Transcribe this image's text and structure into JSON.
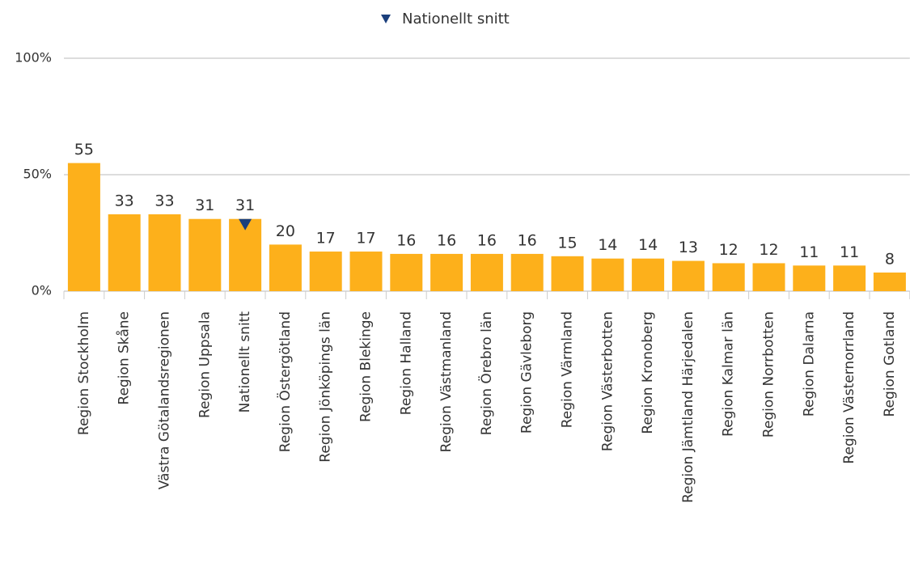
{
  "chart_data": {
    "type": "bar",
    "categories": [
      "Region Stockholm",
      "Region Skåne",
      "Västra Götalandsregionen",
      "Region Uppsala",
      "Nationellt snitt",
      "Region Östergötland",
      "Region Jönköpings län",
      "Region Blekinge",
      "Region Halland",
      "Region Västmanland",
      "Region Örebro län",
      "Region Gävleborg",
      "Region Värmland",
      "Region Västerbotten",
      "Region Kronoberg",
      "Region Jämtland Härjedalen",
      "Region Kalmar län",
      "Region Norrbotten",
      "Region Dalarna",
      "Region Västernorrland",
      "Region Gotland"
    ],
    "series": [
      {
        "color": "#fdb01b",
        "values": [
          55,
          33,
          33,
          31,
          31,
          20,
          17,
          17,
          16,
          16,
          16,
          16,
          15,
          14,
          14,
          13,
          12,
          12,
          11,
          11,
          8
        ]
      },
      {
        "name": "Nationellt snitt",
        "color": "#1b3f7c",
        "marker": "triangle-down",
        "values": [
          null,
          null,
          null,
          null,
          31,
          null,
          null,
          null,
          null,
          null,
          null,
          null,
          null,
          null,
          null,
          null,
          null,
          null,
          null,
          null,
          null
        ]
      }
    ],
    "ylim": [
      0,
      100
    ],
    "yticks": [
      {
        "value": 0,
        "label": "0%"
      },
      {
        "value": 50,
        "label": "50%"
      },
      {
        "value": 100,
        "label": "100%"
      }
    ],
    "grid": true,
    "legend": "top"
  }
}
